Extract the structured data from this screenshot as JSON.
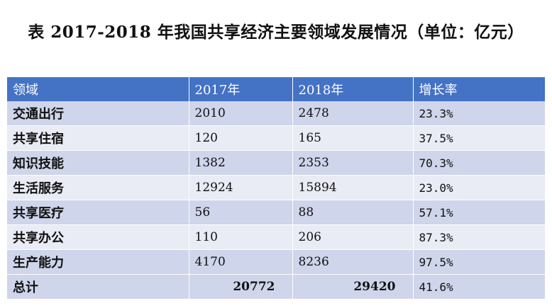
{
  "title": "表  2017-2018 年我国共享经济主要领域发展情况（单位：亿元）",
  "table": {
    "headers": [
      "领域",
      "2017年",
      "2018年",
      "增长率"
    ],
    "rows": [
      {
        "name": "交通出行",
        "y2017": "2010",
        "y2018": "2478",
        "growth": "23.3%"
      },
      {
        "name": "共享住宿",
        "y2017": "120",
        "y2018": "165",
        "growth": "37.5%"
      },
      {
        "name": "知识技能",
        "y2017": "1382",
        "y2018": "2353",
        "growth": "70.3%"
      },
      {
        "name": "生活服务",
        "y2017": "12924",
        "y2018": "15894",
        "growth": "23.0%"
      },
      {
        "name": "共享医疗",
        "y2017": "56",
        "y2018": "88",
        "growth": "57.1%"
      },
      {
        "name": "共享办公",
        "y2017": "110",
        "y2018": "206",
        "growth": "87.3%"
      },
      {
        "name": "生产能力",
        "y2017": "4170",
        "y2018": "8236",
        "growth": "97.5%"
      }
    ],
    "total": {
      "name": "总计",
      "y2017": "20772",
      "y2018": "29420",
      "growth": "41.6%"
    }
  },
  "colors": {
    "header_bg": "#4472c4",
    "row_dark": "#cfd5ea",
    "row_light": "#e9ebf5"
  }
}
